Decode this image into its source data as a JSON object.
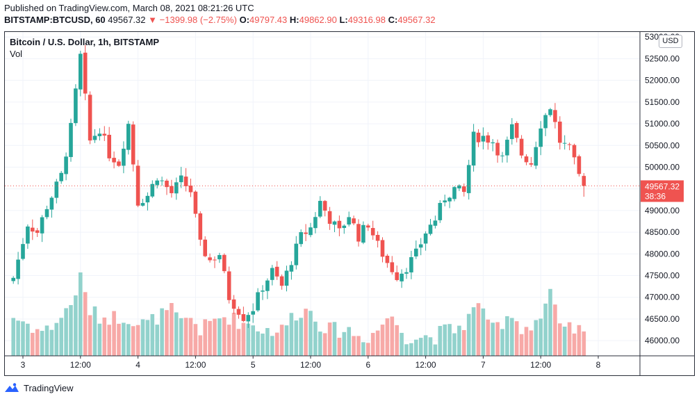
{
  "header": {
    "published": "Published on TradingView.com, March 08, 2021 08:21:26 UTC",
    "symbol": "BITSTAMP:BTCUSD, 60",
    "last": "49567.32",
    "change": "−1399.98 (−2.75%)",
    "o_label": "O:",
    "o_value": "49797.43",
    "h_label": "H:",
    "h_value": "49862.90",
    "l_label": "L:",
    "l_value": "49316.98",
    "c_label": "C:",
    "c_value": "49567.32"
  },
  "legend": {
    "title": "Bitcoin / U.S. Dollar, 1h, BITSTAMP",
    "volume": "Vol"
  },
  "currency": "USD",
  "price_badge": {
    "price": "49567.32",
    "countdown": "38:36"
  },
  "brand": "TradingView",
  "colors": {
    "up": "#26a69a",
    "down": "#ef5350",
    "up_vol": "#92d2cc",
    "down_vol": "#f7a9a7",
    "grid": "#f0f3fa",
    "text": "#131722"
  },
  "chart_data": {
    "type": "candlestick",
    "y_ticks": [
      46000,
      46500,
      47000,
      47500,
      48000,
      48500,
      49000,
      49500,
      50000,
      50500,
      51000,
      51500,
      52000,
      52500,
      53000
    ],
    "ylim": [
      45650,
      53100
    ],
    "x_ticks": [
      {
        "label": "3",
        "t": 0
      },
      {
        "label": "12:00",
        "t": 12
      },
      {
        "label": "4",
        "t": 24
      },
      {
        "label": "12:00",
        "t": 36
      },
      {
        "label": "5",
        "t": 48
      },
      {
        "label": "12:00",
        "t": 60
      },
      {
        "label": "6",
        "t": 72
      },
      {
        "label": "12:00",
        "t": 84
      },
      {
        "label": "7",
        "t": 96
      },
      {
        "label": "12:00",
        "t": 108
      },
      {
        "label": "8",
        "t": 120
      }
    ],
    "last_price": 49567.32,
    "anchors": [
      [
        -2,
        47450,
        6
      ],
      [
        1,
        48700,
        5
      ],
      [
        3,
        48500,
        4
      ],
      [
        5,
        49100,
        4
      ],
      [
        8,
        49800,
        6
      ],
      [
        10,
        50900,
        8
      ],
      [
        12,
        52550,
        12
      ],
      [
        14,
        50600,
        7
      ],
      [
        16,
        50900,
        6
      ],
      [
        18,
        50300,
        6
      ],
      [
        20,
        50100,
        6
      ],
      [
        22,
        51000,
        6
      ],
      [
        24,
        49200,
        5
      ],
      [
        26,
        49350,
        5
      ],
      [
        28,
        49800,
        6
      ],
      [
        31,
        49400,
        7
      ],
      [
        33,
        49700,
        5
      ],
      [
        35,
        49450,
        6
      ],
      [
        37,
        48200,
        4
      ],
      [
        39,
        47850,
        5
      ],
      [
        41,
        48000,
        6
      ],
      [
        43,
        47000,
        6
      ],
      [
        46,
        46550,
        5
      ],
      [
        48,
        46750,
        5
      ],
      [
        50,
        47250,
        4
      ],
      [
        52,
        47600,
        4
      ],
      [
        54,
        47250,
        4
      ],
      [
        56,
        47850,
        6
      ],
      [
        58,
        48400,
        7
      ],
      [
        60,
        48600,
        7
      ],
      [
        62,
        49200,
        5
      ],
      [
        64,
        48800,
        4
      ],
      [
        66,
        48500,
        4
      ],
      [
        68,
        48900,
        4
      ],
      [
        70,
        48400,
        3
      ],
      [
        72,
        48700,
        3
      ],
      [
        74,
        48200,
        4
      ],
      [
        76,
        47800,
        6
      ],
      [
        78,
        47500,
        5
      ],
      [
        80,
        47700,
        3
      ],
      [
        82,
        48000,
        3
      ],
      [
        84,
        48500,
        3
      ],
      [
        86,
        48800,
        3
      ],
      [
        88,
        49300,
        4
      ],
      [
        90,
        49500,
        4
      ],
      [
        92,
        49400,
        5
      ],
      [
        94,
        50700,
        7
      ],
      [
        96,
        50700,
        8
      ],
      [
        98,
        50600,
        4
      ],
      [
        100,
        50200,
        4
      ],
      [
        102,
        50900,
        7
      ],
      [
        104,
        50300,
        4
      ],
      [
        106,
        50100,
        5
      ],
      [
        108,
        51000,
        6
      ],
      [
        110,
        51400,
        10
      ],
      [
        112,
        50600,
        4
      ],
      [
        114,
        50400,
        4
      ],
      [
        116,
        49800,
        4
      ],
      [
        117,
        49567.32,
        3
      ]
    ],
    "t_range": [
      -2,
      117
    ]
  }
}
